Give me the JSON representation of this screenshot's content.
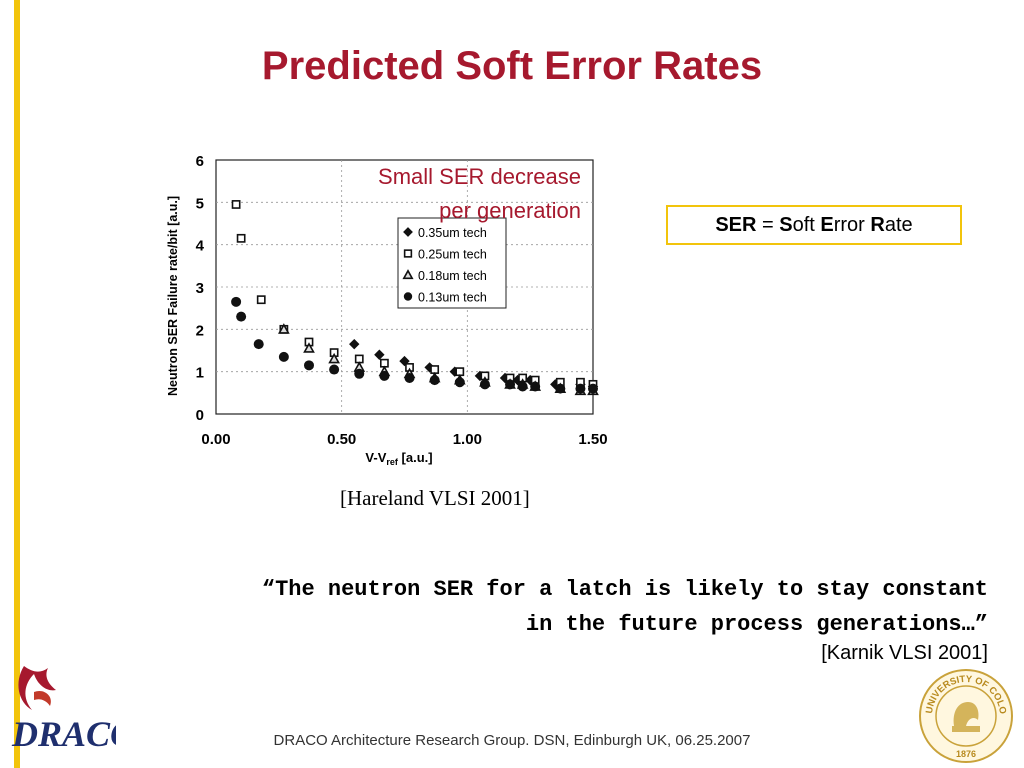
{
  "slide": {
    "title": "Predicted Soft Error Rates",
    "definition": {
      "abbr": "SER",
      "eq": " = ",
      "s": "S",
      "oft": "oft ",
      "e": "E",
      "rror": "rror ",
      "r": "R",
      "ate": "ate"
    },
    "citation": "[Hareland VLSI 2001]",
    "quote_line1": "“The neutron SER for a latch is likely to stay constant",
    "quote_line2": "in the future process generations…”",
    "quote_cite": "[Karnik VLSI 2001]",
    "footer": "DRACO Architecture Research Group.  DSN, Edinburgh UK, 06.25.2007",
    "logo_left": "DRACO",
    "logo_right_text": "UNIVERSITY OF COLORADO",
    "logo_right_year": "1876"
  },
  "colors": {
    "accent_bar": "#f2c40c",
    "title": "#a6192e",
    "annotation": "#a6192e"
  },
  "chart_data": {
    "type": "scatter",
    "title": "",
    "annotation_line1": "Small SER decrease",
    "annotation_line2": "per generation",
    "xlabel_main": "V-V",
    "xlabel_sub": "ref",
    "xlabel_tail": " [a.u.]",
    "ylabel": "Neutron SER Failure rate/bit [a.u.]",
    "xlim": [
      0,
      1.5
    ],
    "ylim": [
      0,
      6
    ],
    "x_ticks": [
      "0.00",
      "0.50",
      "1.00",
      "1.50"
    ],
    "x_tick_values": [
      0,
      0.5,
      1.0,
      1.5
    ],
    "y_ticks": [
      "0",
      "1",
      "2",
      "3",
      "4",
      "5",
      "6"
    ],
    "y_tick_values": [
      0,
      1,
      2,
      3,
      4,
      5,
      6
    ],
    "grid": true,
    "legend_position": "right",
    "series": [
      {
        "name": "0.35um tech",
        "marker": "diamond",
        "x": [
          0.55,
          0.65,
          0.75,
          0.85,
          0.95,
          1.05,
          1.15,
          1.2,
          1.25,
          1.35,
          1.45,
          1.5
        ],
        "y": [
          1.65,
          1.4,
          1.25,
          1.1,
          1.0,
          0.9,
          0.85,
          0.8,
          0.8,
          0.7,
          0.7,
          0.65
        ]
      },
      {
        "name": "0.25um tech",
        "marker": "square",
        "x": [
          0.08,
          0.1,
          0.18,
          0.27,
          0.37,
          0.47,
          0.57,
          0.67,
          0.77,
          0.87,
          0.97,
          1.07,
          1.17,
          1.22,
          1.27,
          1.37,
          1.45,
          1.5
        ],
        "y": [
          4.95,
          4.15,
          2.7,
          2.0,
          1.7,
          1.45,
          1.3,
          1.2,
          1.1,
          1.05,
          1.0,
          0.9,
          0.85,
          0.85,
          0.8,
          0.75,
          0.75,
          0.7
        ]
      },
      {
        "name": "0.18um tech",
        "marker": "triangle",
        "x": [
          0.27,
          0.37,
          0.47,
          0.57,
          0.67,
          0.77,
          0.87,
          0.97,
          1.07,
          1.17,
          1.22,
          1.27,
          1.37,
          1.45,
          1.5
        ],
        "y": [
          2.0,
          1.55,
          1.3,
          1.1,
          1.0,
          0.95,
          0.85,
          0.8,
          0.75,
          0.7,
          0.7,
          0.65,
          0.6,
          0.55,
          0.55
        ]
      },
      {
        "name": "0.13um tech",
        "marker": "circle",
        "x": [
          0.08,
          0.1,
          0.17,
          0.27,
          0.37,
          0.47,
          0.57,
          0.67,
          0.77,
          0.87,
          0.97,
          1.07,
          1.17,
          1.22,
          1.27,
          1.37,
          1.45,
          1.5
        ],
        "y": [
          2.65,
          2.3,
          1.65,
          1.35,
          1.15,
          1.05,
          0.95,
          0.9,
          0.85,
          0.8,
          0.75,
          0.7,
          0.7,
          0.65,
          0.65,
          0.6,
          0.6,
          0.6
        ]
      }
    ]
  }
}
